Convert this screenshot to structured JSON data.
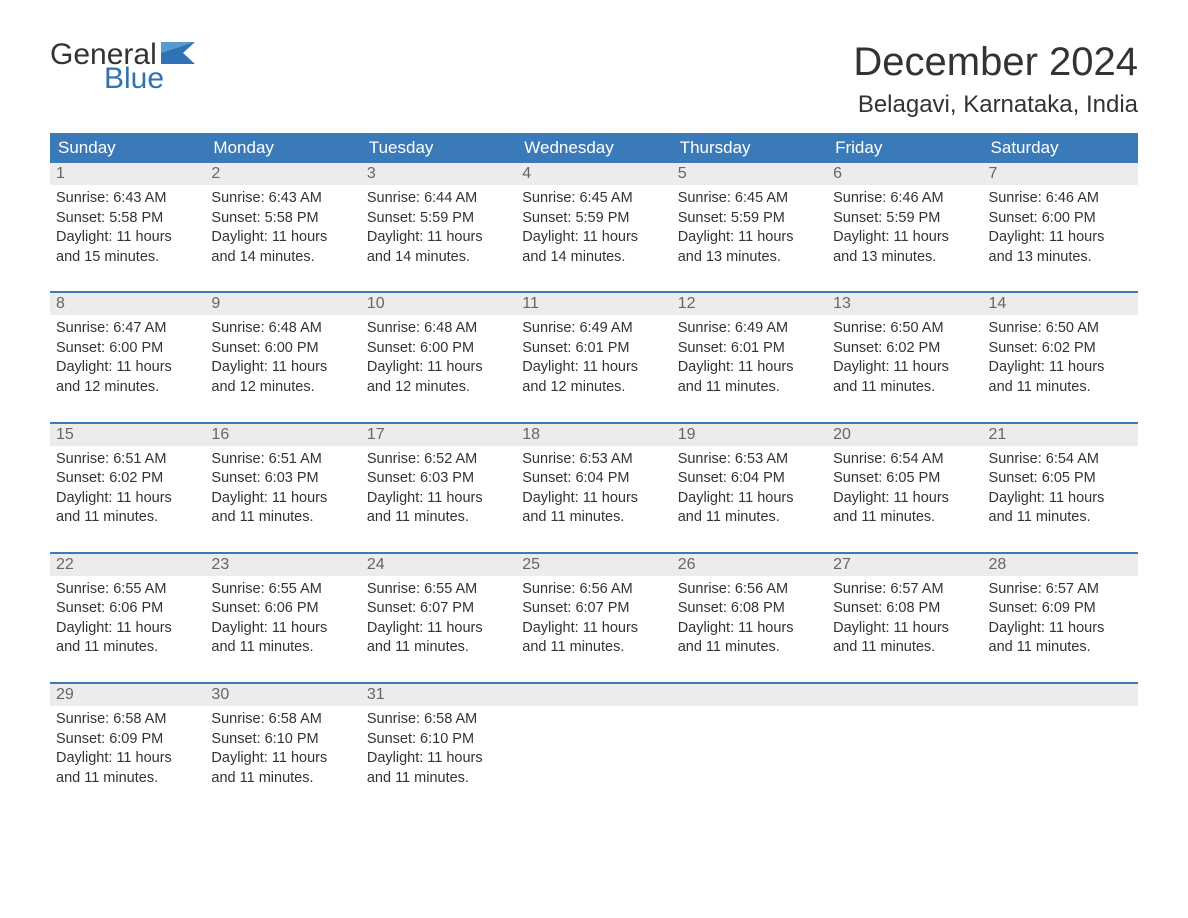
{
  "brand": {
    "part1": "General",
    "part2": "Blue"
  },
  "title": "December 2024",
  "location": "Belagavi, Karnataka, India",
  "colors": {
    "header_bg": "#3b7ab8",
    "header_text": "#ffffff",
    "date_bg": "#ececec",
    "date_text": "#666666",
    "body_text": "#333333",
    "brand_blue": "#2f72b5",
    "week_border": "#3b7ab8",
    "page_bg": "#ffffff"
  },
  "typography": {
    "title_fontsize": 40,
    "location_fontsize": 24,
    "dayheader_fontsize": 17,
    "datenum_fontsize": 16,
    "body_fontsize": 14.5,
    "logo_fontsize": 30
  },
  "day_names": [
    "Sunday",
    "Monday",
    "Tuesday",
    "Wednesday",
    "Thursday",
    "Friday",
    "Saturday"
  ],
  "weeks": [
    [
      {
        "n": "1",
        "sr": "Sunrise: 6:43 AM",
        "ss": "Sunset: 5:58 PM",
        "d1": "Daylight: 11 hours",
        "d2": "and 15 minutes."
      },
      {
        "n": "2",
        "sr": "Sunrise: 6:43 AM",
        "ss": "Sunset: 5:58 PM",
        "d1": "Daylight: 11 hours",
        "d2": "and 14 minutes."
      },
      {
        "n": "3",
        "sr": "Sunrise: 6:44 AM",
        "ss": "Sunset: 5:59 PM",
        "d1": "Daylight: 11 hours",
        "d2": "and 14 minutes."
      },
      {
        "n": "4",
        "sr": "Sunrise: 6:45 AM",
        "ss": "Sunset: 5:59 PM",
        "d1": "Daylight: 11 hours",
        "d2": "and 14 minutes."
      },
      {
        "n": "5",
        "sr": "Sunrise: 6:45 AM",
        "ss": "Sunset: 5:59 PM",
        "d1": "Daylight: 11 hours",
        "d2": "and 13 minutes."
      },
      {
        "n": "6",
        "sr": "Sunrise: 6:46 AM",
        "ss": "Sunset: 5:59 PM",
        "d1": "Daylight: 11 hours",
        "d2": "and 13 minutes."
      },
      {
        "n": "7",
        "sr": "Sunrise: 6:46 AM",
        "ss": "Sunset: 6:00 PM",
        "d1": "Daylight: 11 hours",
        "d2": "and 13 minutes."
      }
    ],
    [
      {
        "n": "8",
        "sr": "Sunrise: 6:47 AM",
        "ss": "Sunset: 6:00 PM",
        "d1": "Daylight: 11 hours",
        "d2": "and 12 minutes."
      },
      {
        "n": "9",
        "sr": "Sunrise: 6:48 AM",
        "ss": "Sunset: 6:00 PM",
        "d1": "Daylight: 11 hours",
        "d2": "and 12 minutes."
      },
      {
        "n": "10",
        "sr": "Sunrise: 6:48 AM",
        "ss": "Sunset: 6:00 PM",
        "d1": "Daylight: 11 hours",
        "d2": "and 12 minutes."
      },
      {
        "n": "11",
        "sr": "Sunrise: 6:49 AM",
        "ss": "Sunset: 6:01 PM",
        "d1": "Daylight: 11 hours",
        "d2": "and 12 minutes."
      },
      {
        "n": "12",
        "sr": "Sunrise: 6:49 AM",
        "ss": "Sunset: 6:01 PM",
        "d1": "Daylight: 11 hours",
        "d2": "and 11 minutes."
      },
      {
        "n": "13",
        "sr": "Sunrise: 6:50 AM",
        "ss": "Sunset: 6:02 PM",
        "d1": "Daylight: 11 hours",
        "d2": "and 11 minutes."
      },
      {
        "n": "14",
        "sr": "Sunrise: 6:50 AM",
        "ss": "Sunset: 6:02 PM",
        "d1": "Daylight: 11 hours",
        "d2": "and 11 minutes."
      }
    ],
    [
      {
        "n": "15",
        "sr": "Sunrise: 6:51 AM",
        "ss": "Sunset: 6:02 PM",
        "d1": "Daylight: 11 hours",
        "d2": "and 11 minutes."
      },
      {
        "n": "16",
        "sr": "Sunrise: 6:51 AM",
        "ss": "Sunset: 6:03 PM",
        "d1": "Daylight: 11 hours",
        "d2": "and 11 minutes."
      },
      {
        "n": "17",
        "sr": "Sunrise: 6:52 AM",
        "ss": "Sunset: 6:03 PM",
        "d1": "Daylight: 11 hours",
        "d2": "and 11 minutes."
      },
      {
        "n": "18",
        "sr": "Sunrise: 6:53 AM",
        "ss": "Sunset: 6:04 PM",
        "d1": "Daylight: 11 hours",
        "d2": "and 11 minutes."
      },
      {
        "n": "19",
        "sr": "Sunrise: 6:53 AM",
        "ss": "Sunset: 6:04 PM",
        "d1": "Daylight: 11 hours",
        "d2": "and 11 minutes."
      },
      {
        "n": "20",
        "sr": "Sunrise: 6:54 AM",
        "ss": "Sunset: 6:05 PM",
        "d1": "Daylight: 11 hours",
        "d2": "and 11 minutes."
      },
      {
        "n": "21",
        "sr": "Sunrise: 6:54 AM",
        "ss": "Sunset: 6:05 PM",
        "d1": "Daylight: 11 hours",
        "d2": "and 11 minutes."
      }
    ],
    [
      {
        "n": "22",
        "sr": "Sunrise: 6:55 AM",
        "ss": "Sunset: 6:06 PM",
        "d1": "Daylight: 11 hours",
        "d2": "and 11 minutes."
      },
      {
        "n": "23",
        "sr": "Sunrise: 6:55 AM",
        "ss": "Sunset: 6:06 PM",
        "d1": "Daylight: 11 hours",
        "d2": "and 11 minutes."
      },
      {
        "n": "24",
        "sr": "Sunrise: 6:55 AM",
        "ss": "Sunset: 6:07 PM",
        "d1": "Daylight: 11 hours",
        "d2": "and 11 minutes."
      },
      {
        "n": "25",
        "sr": "Sunrise: 6:56 AM",
        "ss": "Sunset: 6:07 PM",
        "d1": "Daylight: 11 hours",
        "d2": "and 11 minutes."
      },
      {
        "n": "26",
        "sr": "Sunrise: 6:56 AM",
        "ss": "Sunset: 6:08 PM",
        "d1": "Daylight: 11 hours",
        "d2": "and 11 minutes."
      },
      {
        "n": "27",
        "sr": "Sunrise: 6:57 AM",
        "ss": "Sunset: 6:08 PM",
        "d1": "Daylight: 11 hours",
        "d2": "and 11 minutes."
      },
      {
        "n": "28",
        "sr": "Sunrise: 6:57 AM",
        "ss": "Sunset: 6:09 PM",
        "d1": "Daylight: 11 hours",
        "d2": "and 11 minutes."
      }
    ],
    [
      {
        "n": "29",
        "sr": "Sunrise: 6:58 AM",
        "ss": "Sunset: 6:09 PM",
        "d1": "Daylight: 11 hours",
        "d2": "and 11 minutes."
      },
      {
        "n": "30",
        "sr": "Sunrise: 6:58 AM",
        "ss": "Sunset: 6:10 PM",
        "d1": "Daylight: 11 hours",
        "d2": "and 11 minutes."
      },
      {
        "n": "31",
        "sr": "Sunrise: 6:58 AM",
        "ss": "Sunset: 6:10 PM",
        "d1": "Daylight: 11 hours",
        "d2": "and 11 minutes."
      },
      null,
      null,
      null,
      null
    ]
  ]
}
